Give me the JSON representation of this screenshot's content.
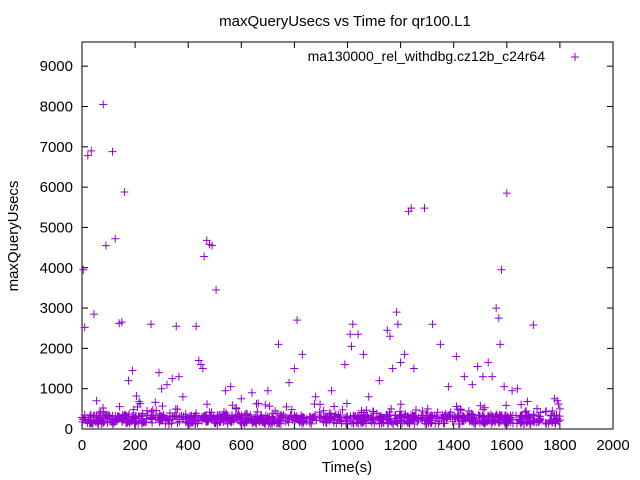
{
  "chart_data": {
    "type": "scatter",
    "title": "maxQueryUsecs vs Time for qr100.L1",
    "xlabel": "Time(s)",
    "ylabel": "maxQueryUsecs",
    "xlim": [
      0,
      2000
    ],
    "ylim": [
      0,
      9600
    ],
    "x_ticks": [
      0,
      200,
      400,
      600,
      800,
      1000,
      1200,
      1400,
      1600,
      1800,
      2000
    ],
    "y_ticks": [
      0,
      1000,
      2000,
      3000,
      4000,
      5000,
      6000,
      7000,
      8000,
      9000
    ],
    "grid": false,
    "legend_position": "top-right",
    "marker": "plus",
    "series": [
      {
        "name": "ma130000_rel_withdbg.cz12b_c24r64",
        "color": "#9400d3",
        "x": [
          5,
          10,
          22,
          35,
          45,
          55,
          80,
          90,
          115,
          125,
          140,
          150,
          160,
          175,
          190,
          205,
          215,
          260,
          290,
          300,
          320,
          340,
          355,
          365,
          380,
          430,
          440,
          448,
          455,
          460,
          470,
          480,
          490,
          505,
          540,
          560,
          600,
          640,
          700,
          740,
          780,
          800,
          810,
          830,
          880,
          940,
          990,
          1010,
          1015,
          1020,
          1040,
          1060,
          1080,
          1120,
          1150,
          1160,
          1170,
          1185,
          1190,
          1200,
          1215,
          1230,
          1240,
          1250,
          1290,
          1320,
          1350,
          1380,
          1410,
          1440,
          1470,
          1490,
          1510,
          1530,
          1545,
          1560,
          1570,
          1575,
          1580,
          1590,
          1600,
          1620,
          1640,
          1700,
          1780,
          1790,
          1795,
          1800
        ],
        "y": [
          3950,
          2520,
          6780,
          6900,
          2850,
          700,
          8050,
          4550,
          6880,
          4720,
          2620,
          2650,
          5880,
          1200,
          1450,
          820,
          680,
          2600,
          1400,
          1000,
          1100,
          1250,
          2550,
          1300,
          800,
          2550,
          1700,
          1600,
          1500,
          4280,
          4680,
          4580,
          4550,
          3450,
          950,
          1050,
          750,
          900,
          950,
          2100,
          1150,
          1500,
          2700,
          1850,
          800,
          950,
          1600,
          2350,
          2050,
          2600,
          2350,
          1850,
          800,
          1200,
          2450,
          2300,
          1500,
          2900,
          2600,
          1650,
          1850,
          5400,
          5480,
          1500,
          5480,
          2600,
          2100,
          1050,
          1800,
          1300,
          1100,
          1550,
          1300,
          1650,
          1300,
          3000,
          2750,
          2100,
          3950,
          1050,
          5850,
          950,
          1000,
          2580,
          750,
          700,
          620,
          500
        ]
      }
    ]
  }
}
